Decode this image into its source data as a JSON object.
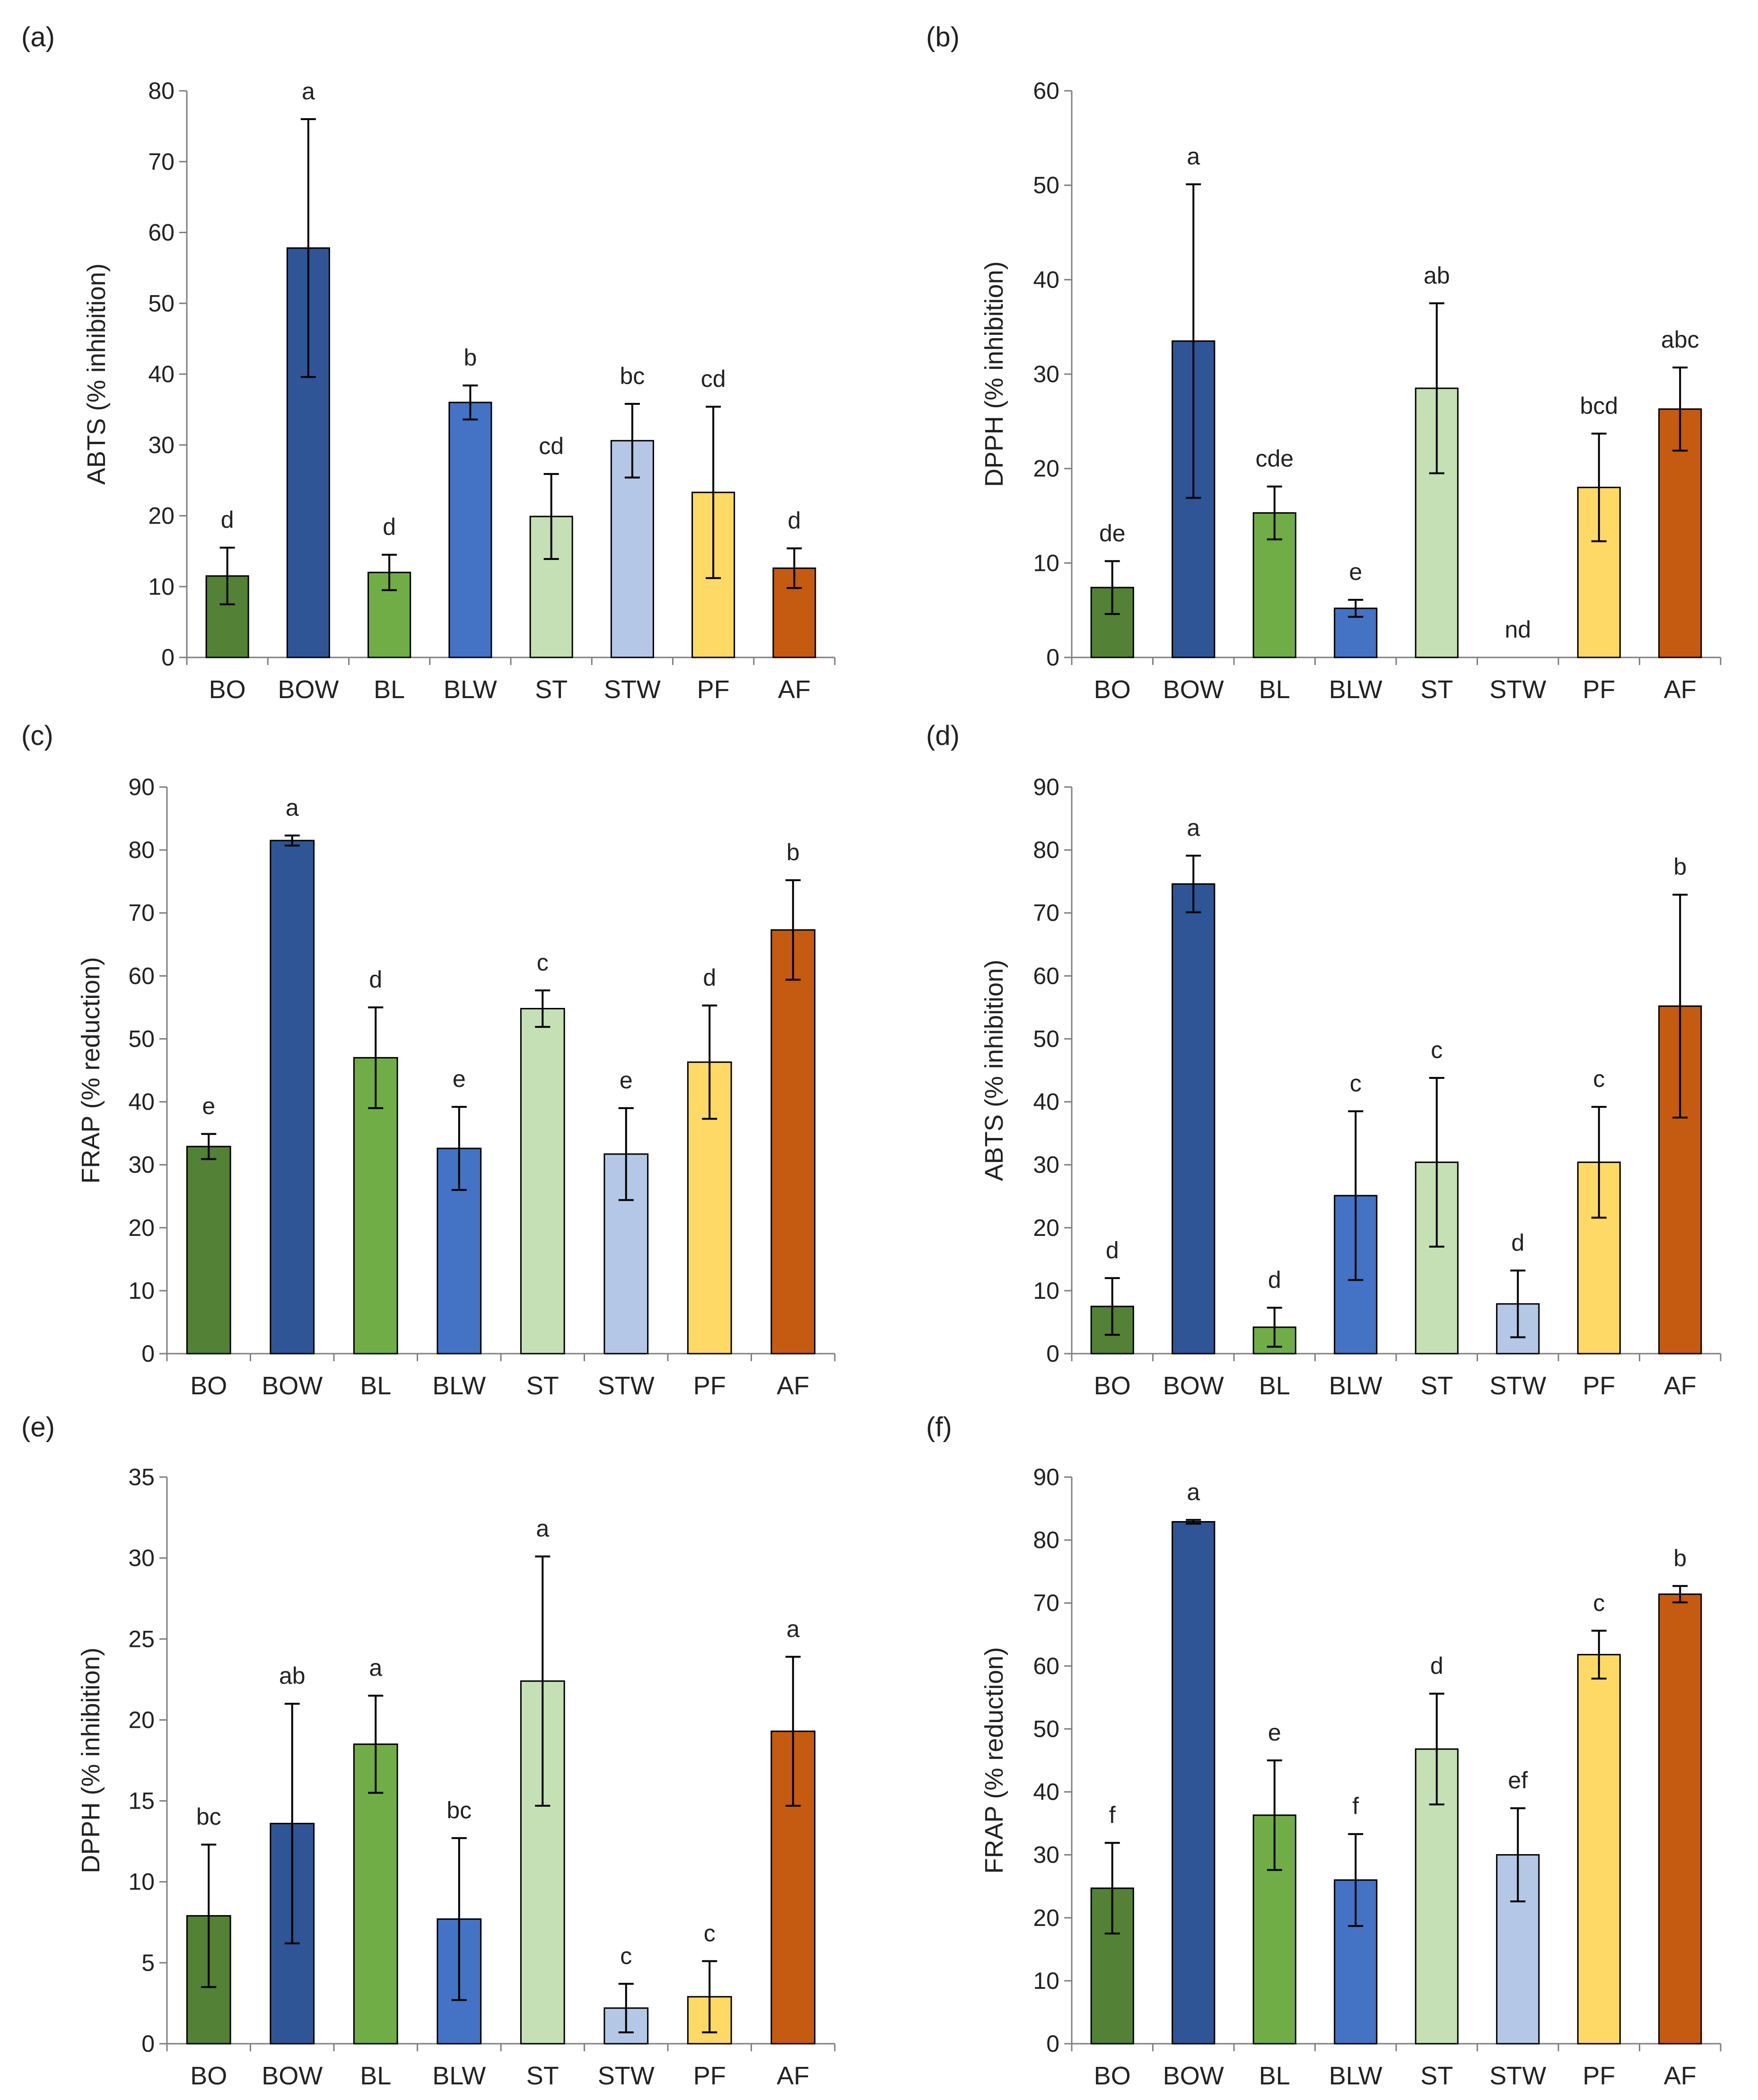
{
  "colors": {
    "BO": "#538135",
    "BOW": "#2F5597",
    "BL": "#70AD47",
    "BLW": "#4472C4",
    "ST": "#C5E0B4",
    "STW": "#B4C7E7",
    "PF": "#FFD966",
    "AF": "#C55A11",
    "axis": "#7F7F7F",
    "outline": "#000000"
  },
  "chart_data": [
    {
      "type": "bar",
      "panel": "(a)",
      "ylabel": "ABTS (% inhibition)",
      "ylim": [
        0,
        80
      ],
      "ytick_step": 10,
      "yticks": [
        "0",
        "10",
        "20",
        "30",
        "40",
        "50",
        "60",
        "70",
        "80"
      ],
      "categories": [
        "BO",
        "BOW",
        "BL",
        "BLW",
        "ST",
        "STW",
        "PF",
        "AF"
      ],
      "values": [
        11.5,
        57.8,
        12.0,
        36.0,
        19.9,
        30.6,
        23.3,
        12.6
      ],
      "errors": [
        4.0,
        18.2,
        2.5,
        2.4,
        6.0,
        5.2,
        12.1,
        2.8
      ],
      "letters": [
        "d",
        "a",
        "d",
        "b",
        "cd",
        "bc",
        "cd",
        "d"
      ]
    },
    {
      "type": "bar",
      "panel": "(b)",
      "ylabel": "DPPH (% inhibition)",
      "ylim": [
        0,
        60
      ],
      "ytick_step": 10,
      "yticks": [
        "0",
        "10",
        "20",
        "30",
        "40",
        "50",
        "60"
      ],
      "categories": [
        "BO",
        "BOW",
        "BL",
        "BLW",
        "ST",
        "STW",
        "PF",
        "AF"
      ],
      "values": [
        7.4,
        33.5,
        15.3,
        5.2,
        28.5,
        0,
        18.0,
        26.3
      ],
      "errors": [
        2.8,
        16.6,
        2.8,
        0.9,
        9.0,
        0,
        5.7,
        4.4
      ],
      "letters": [
        "de",
        "a",
        "cde",
        "e",
        "ab",
        "nd",
        "bcd",
        "abc"
      ]
    },
    {
      "type": "bar",
      "panel": "(c)",
      "ylabel": "FRAP (% reduction)",
      "ylim": [
        0,
        90
      ],
      "ytick_step": 10,
      "yticks": [
        "0",
        "10",
        "20",
        "30",
        "40",
        "50",
        "60",
        "70",
        "80",
        "90"
      ],
      "categories": [
        "BO",
        "BOW",
        "BL",
        "BLW",
        "ST",
        "STW",
        "PF",
        "AF"
      ],
      "values": [
        32.9,
        81.5,
        47.0,
        32.6,
        54.8,
        31.7,
        46.3,
        67.3
      ],
      "errors": [
        2.0,
        0.8,
        8.0,
        6.6,
        2.9,
        7.3,
        9.0,
        7.9
      ],
      "letters": [
        "e",
        "a",
        "d",
        "e",
        "c",
        "e",
        "d",
        "b"
      ]
    },
    {
      "type": "bar",
      "panel": "(d)",
      "ylabel": "ABTS (% inhibition)",
      "ylim": [
        0,
        90
      ],
      "ytick_step": 10,
      "yticks": [
        "0",
        "10",
        "20",
        "30",
        "40",
        "50",
        "60",
        "70",
        "80",
        "90"
      ],
      "categories": [
        "BO",
        "BOW",
        "BL",
        "BLW",
        "ST",
        "STW",
        "PF",
        "AF"
      ],
      "values": [
        7.5,
        74.6,
        4.2,
        25.1,
        30.4,
        7.9,
        30.4,
        55.2
      ],
      "errors": [
        4.5,
        4.5,
        3.1,
        13.4,
        13.4,
        5.3,
        8.8,
        17.7
      ],
      "letters": [
        "d",
        "a",
        "d",
        "c",
        "c",
        "d",
        "c",
        "b"
      ]
    },
    {
      "type": "bar",
      "panel": "(e)",
      "ylabel": "DPPH (% inhibition)",
      "ylim": [
        0,
        35
      ],
      "ytick_step": 5,
      "yticks": [
        "0",
        "5",
        "10",
        "15",
        "20",
        "25",
        "30",
        "35"
      ],
      "categories": [
        "BO",
        "BOW",
        "BL",
        "BLW",
        "ST",
        "STW",
        "PF",
        "AF"
      ],
      "values": [
        7.9,
        13.6,
        18.5,
        7.7,
        22.4,
        2.2,
        2.9,
        19.3
      ],
      "errors": [
        4.4,
        7.4,
        3.0,
        5.0,
        7.7,
        1.5,
        2.2,
        4.6
      ],
      "letters": [
        "bc",
        "ab",
        "a",
        "bc",
        "a",
        "c",
        "c",
        "a"
      ]
    },
    {
      "type": "bar",
      "panel": "(f)",
      "ylabel": "FRAP (% reduction)",
      "ylim": [
        0,
        90
      ],
      "ytick_step": 10,
      "yticks": [
        "0",
        "10",
        "20",
        "30",
        "40",
        "50",
        "60",
        "70",
        "80",
        "90"
      ],
      "categories": [
        "BO",
        "BOW",
        "BL",
        "BLW",
        "ST",
        "STW",
        "PF",
        "AF"
      ],
      "values": [
        24.7,
        82.9,
        36.3,
        26.0,
        46.8,
        30.0,
        61.8,
        71.4
      ],
      "errors": [
        7.2,
        0.3,
        8.7,
        7.3,
        8.8,
        7.4,
        3.8,
        1.3
      ],
      "letters": [
        "f",
        "a",
        "e",
        "f",
        "d",
        "ef",
        "c",
        "b"
      ]
    }
  ]
}
